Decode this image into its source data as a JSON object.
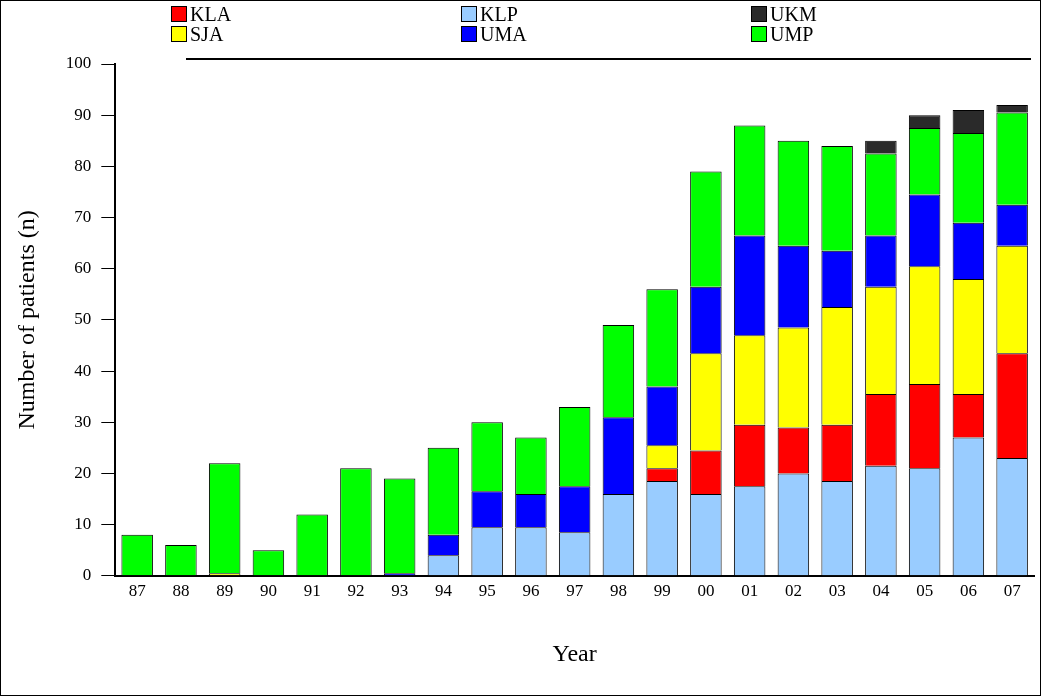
{
  "chart_data": {
    "type": "bar",
    "stacked": true,
    "xlabel": "Year",
    "ylabel": "Number of patients (n)",
    "categories": [
      "87",
      "88",
      "89",
      "90",
      "91",
      "92",
      "93",
      "94",
      "95",
      "96",
      "97",
      "98",
      "99",
      "00",
      "01",
      "02",
      "03",
      "04",
      "05",
      "06",
      "07"
    ],
    "series": [
      {
        "name": "KLP",
        "color": "#99ccff",
        "values": [
          0,
          0,
          0,
          0,
          0,
          0,
          0,
          4,
          9.5,
          9.5,
          8.5,
          16,
          18.5,
          16,
          17.5,
          20,
          18.5,
          21.5,
          21,
          27,
          23
        ]
      },
      {
        "name": "KLA",
        "color": "#ff0000",
        "values": [
          0,
          0,
          0,
          0,
          0,
          0,
          0,
          0,
          0,
          0,
          0,
          0,
          2.5,
          8.5,
          12,
          9,
          11,
          14,
          16.5,
          8.5,
          20.5
        ]
      },
      {
        "name": "SJA",
        "color": "#ffff00",
        "values": [
          0,
          0,
          0.5,
          0,
          0,
          0,
          0,
          0,
          0,
          0,
          0,
          0,
          4.5,
          19,
          17.5,
          19.5,
          23,
          21,
          23,
          22.5,
          21
        ]
      },
      {
        "name": "UMA",
        "color": "#0000ff",
        "values": [
          0,
          0,
          0,
          0,
          0,
          0,
          0.5,
          4,
          7,
          6.5,
          9,
          15,
          11.5,
          13,
          19.5,
          16,
          11,
          10,
          14,
          11,
          8
        ]
      },
      {
        "name": "UMP",
        "color": "#00ff00",
        "values": [
          8,
          6,
          21.5,
          5,
          12,
          21,
          18.5,
          17,
          13.5,
          11,
          15.5,
          18,
          19,
          22.5,
          21.5,
          20.5,
          20.5,
          16,
          13,
          17.5,
          18
        ]
      },
      {
        "name": "UKM",
        "color": "#2a2a2a",
        "values": [
          0,
          0,
          0,
          0,
          0,
          0,
          0,
          0,
          0,
          0,
          0,
          0,
          0,
          0,
          0,
          0,
          0,
          2.5,
          2.5,
          4.5,
          1.5
        ]
      }
    ],
    "ylim": [
      0,
      100
    ],
    "yticks": [
      0,
      10,
      20,
      30,
      40,
      50,
      60,
      70,
      80,
      90,
      100
    ],
    "grid": false,
    "legend": "top"
  }
}
